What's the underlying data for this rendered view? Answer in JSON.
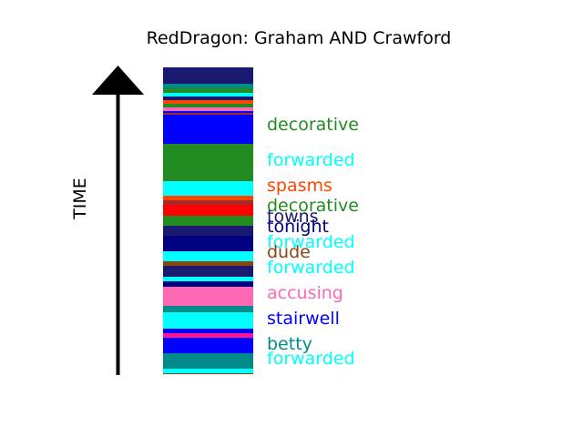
{
  "title": "RedDragon: Graham AND Crawford",
  "axis_label": "TIME",
  "chart_data": {
    "type": "bar",
    "title": "RedDragon: Graham AND Crawford",
    "ylabel": "TIME",
    "segments": [
      {
        "color": "#191970"
      },
      {
        "color": "#191970"
      },
      {
        "color": "#008B8B"
      },
      {
        "color": "#228B22"
      },
      {
        "color": "#00FFFF"
      },
      {
        "color": "#191970"
      },
      {
        "color": "#FF4500"
      },
      {
        "color": "#228B22"
      },
      {
        "color": "#FF69B4"
      },
      {
        "color": "#0000FF"
      },
      {
        "color": "#A52A2A"
      },
      {
        "color": "#0000FF"
      },
      {
        "color": "#228B22",
        "label": "decorative"
      },
      {
        "color": "#00FFFF",
        "label": "forwarded"
      },
      {
        "color": "#FF4500",
        "label": "spasms"
      },
      {
        "color": "#A52A2A"
      },
      {
        "color": "#FF0000"
      },
      {
        "color": "#228B22",
        "label": "decorative"
      },
      {
        "color": "#191970",
        "label": "towns"
      },
      {
        "color": "#000080",
        "label": "tonight"
      },
      {
        "color": "#00FFFF",
        "label": "forwarded"
      },
      {
        "color": "#8B4513",
        "label": "dude"
      },
      {
        "color": "#191970"
      },
      {
        "color": "#00FFFF",
        "label": "forwarded"
      },
      {
        "color": "#000080"
      },
      {
        "color": "#FF69B4"
      },
      {
        "color": "#FF69B4",
        "label": "accusing"
      },
      {
        "color": "#008B8B"
      },
      {
        "color": "#00FFFF"
      },
      {
        "color": "#0000FF",
        "label": "stairwell"
      },
      {
        "color": "#FF1493"
      },
      {
        "color": "#0000FF"
      },
      {
        "color": "#008B8B",
        "label": "betty"
      },
      {
        "color": "#00FFFF",
        "label": "forwarded"
      },
      {
        "color": "#8B4513"
      }
    ]
  }
}
